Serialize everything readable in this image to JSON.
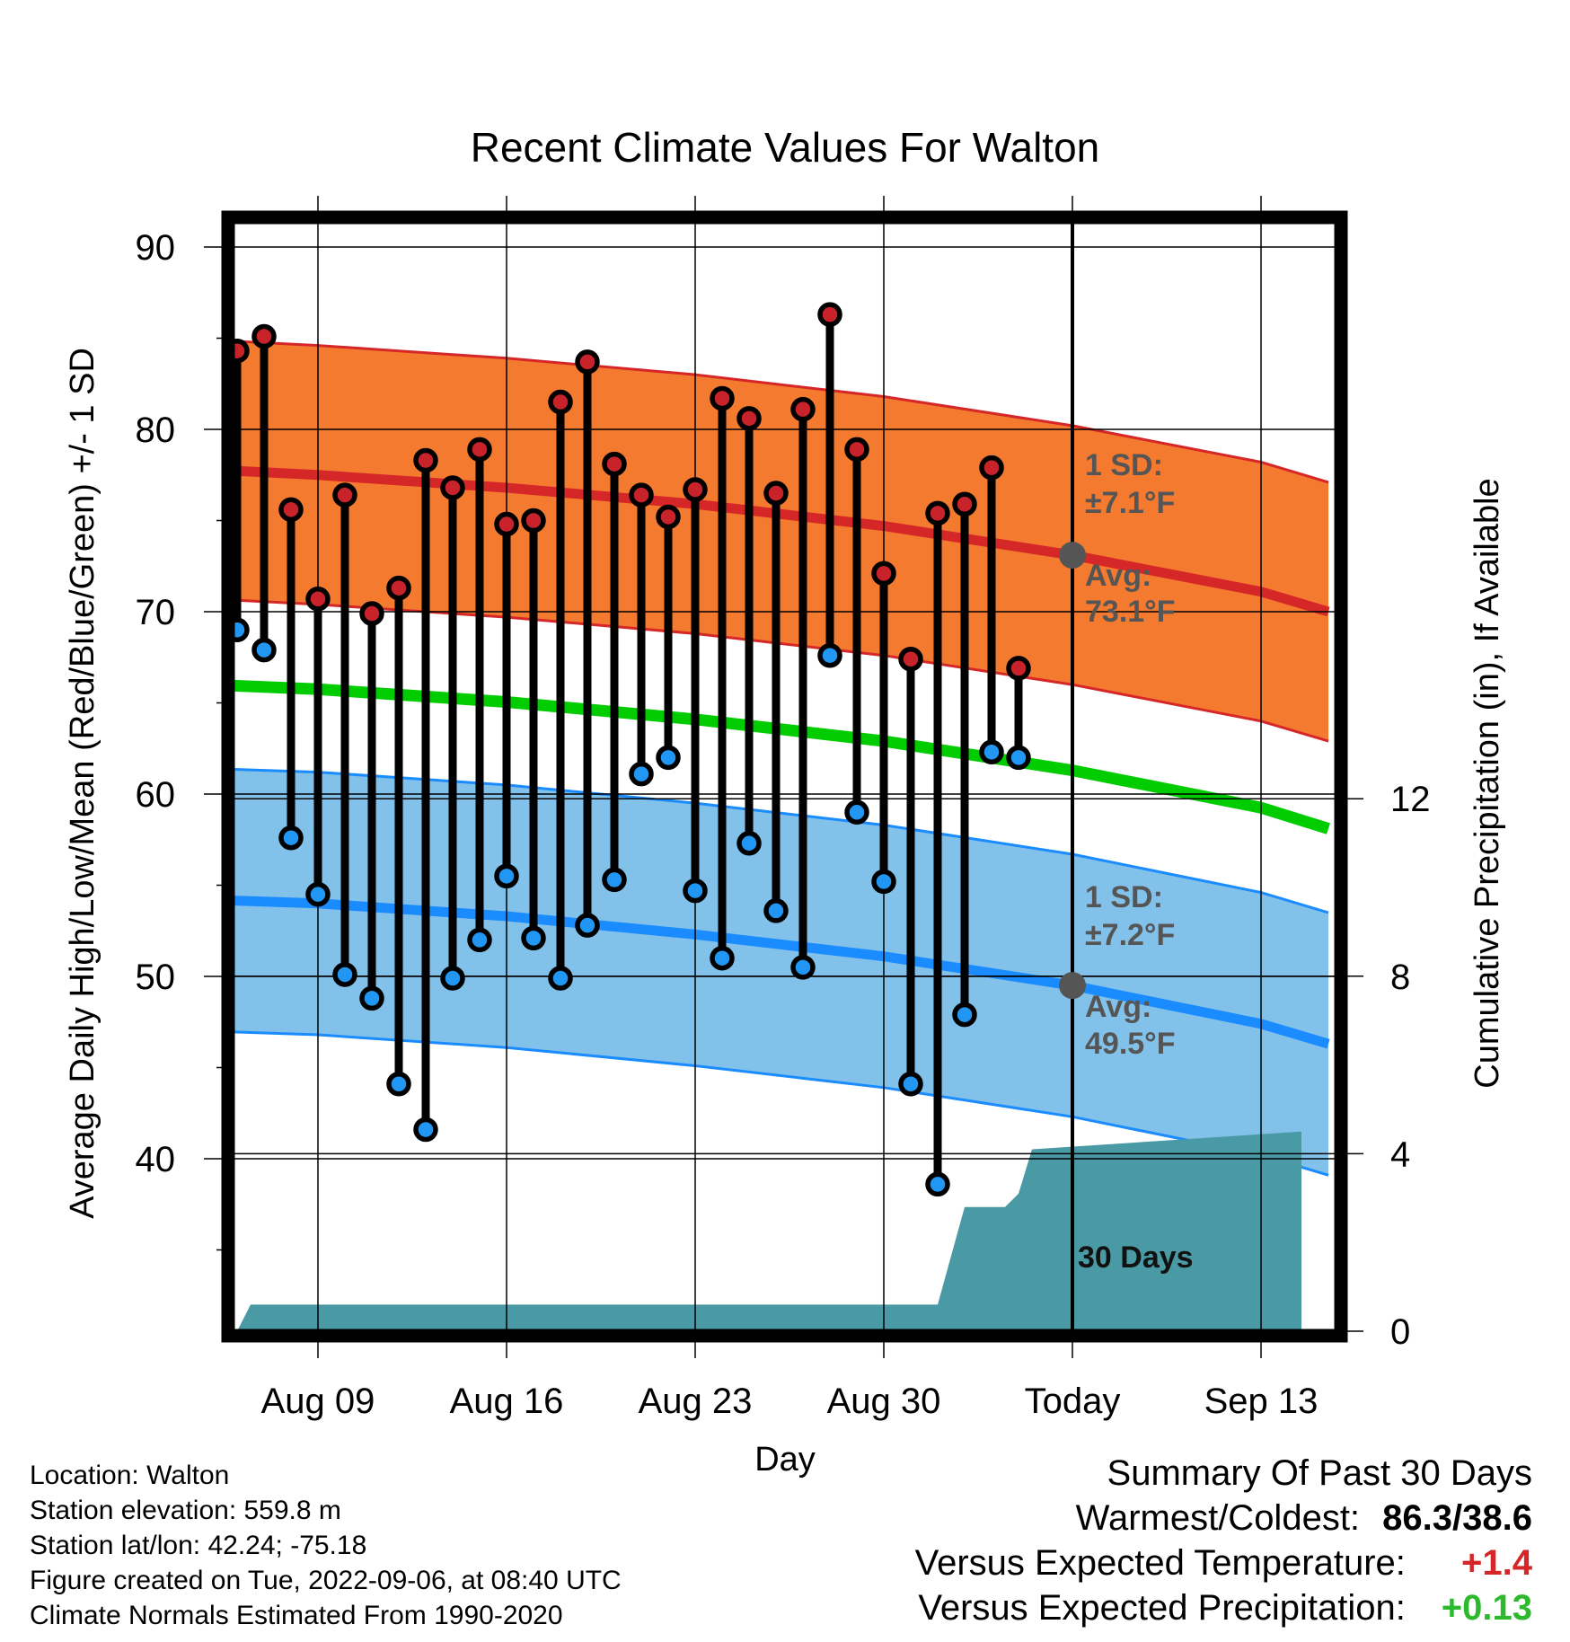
{
  "chart_data": {
    "type": "line",
    "title": "Recent Climate Values For Walton",
    "xlabel": "Day",
    "ylabel": "Average Daily High/Low/Mean (Red/Blue/Green) +/- 1 SD",
    "y2label": "Cumulative Precipitation (in), If Available",
    "ylim": [
      30,
      90
    ],
    "y2lim": [
      0,
      24
    ],
    "yticks": [
      "40",
      "50",
      "60",
      "70",
      "80",
      "90"
    ],
    "y2ticks": [
      "0",
      "4",
      "8",
      "12"
    ],
    "xlim": [
      -33.5,
      8.5
    ],
    "xticks": [
      {
        "label": "Aug 09",
        "day": -28
      },
      {
        "label": "Aug 16",
        "day": -21
      },
      {
        "label": "Aug 23",
        "day": -14
      },
      {
        "label": "Aug 30",
        "day": -7
      },
      {
        "label": "Today",
        "day": 0
      },
      {
        "label": "Sep 13",
        "day": 7
      }
    ],
    "today_marker": {
      "label": "30 Days"
    },
    "daily": {
      "days": [
        -31,
        -30,
        -29,
        -28,
        -27,
        -26,
        -25,
        -24,
        -23,
        -22,
        -21,
        -20,
        -19,
        -18,
        -17,
        -16,
        -15,
        -14,
        -13,
        -12,
        -11,
        -10,
        -9,
        -8,
        -7,
        -6,
        -5,
        -4,
        -3,
        -2,
        -1
      ],
      "highs": [
        84.3,
        85.1,
        75.6,
        70.7,
        76.4,
        69.9,
        71.3,
        78.3,
        76.8,
        78.9,
        74.8,
        75.0,
        81.5,
        83.7,
        78.1,
        76.4,
        75.2,
        76.7,
        81.7,
        80.6,
        76.5,
        81.1,
        86.3,
        78.9,
        72.1,
        67.4,
        75.4,
        75.9,
        77.9,
        66.9,
        null
      ],
      "lows": [
        69.0,
        67.9,
        57.6,
        54.5,
        50.1,
        48.8,
        44.1,
        41.6,
        49.9,
        52.0,
        55.5,
        52.1,
        49.9,
        52.8,
        55.3,
        61.1,
        62.0,
        54.7,
        51.0,
        57.3,
        53.6,
        50.5,
        67.6,
        59.0,
        55.2,
        44.1,
        38.6,
        47.9,
        62.3,
        62.0,
        null
      ]
    },
    "normals": {
      "days": [
        -32,
        -28,
        -21,
        -14,
        -7,
        0,
        7,
        9.5
      ],
      "high_avg": [
        77.8,
        77.5,
        76.8,
        75.9,
        74.7,
        73.1,
        71.1,
        70.0
      ],
      "low_avg": [
        54.2,
        54.0,
        53.3,
        52.3,
        51.1,
        49.5,
        47.4,
        46.3
      ],
      "mean_avg": [
        66.0,
        65.75,
        65.05,
        64.1,
        62.9,
        61.3,
        59.25,
        58.1
      ],
      "high_sd": 7.1,
      "low_sd": 7.2
    },
    "precip": {
      "days": [
        -31.5,
        -31,
        -30.5,
        -29,
        -28,
        -25,
        -21,
        -18,
        -15,
        -14,
        -13,
        -12.5,
        -10,
        -9,
        -8.5,
        -8,
        -6,
        -5,
        -4,
        -3.5,
        -3,
        -2.5,
        -2,
        -1.5,
        8.5
      ],
      "values": [
        0,
        0,
        0.6,
        0.6,
        0.6,
        0.6,
        0.6,
        0.6,
        0.6,
        0.6,
        0.6,
        0.6,
        0.6,
        0.6,
        0.6,
        0.6,
        0.6,
        0.6,
        2.8,
        2.8,
        2.8,
        2.8,
        3.1,
        4.1,
        4.5
      ]
    },
    "annotations": {
      "high_sd_label": "1 SD:",
      "high_sd_value": "±7.1°F",
      "high_avg_label": "Avg:",
      "high_avg_value": "73.1°F",
      "low_sd_label": "1 SD:",
      "low_sd_value": "±7.2°F",
      "low_avg_label": "Avg:",
      "low_avg_value": "49.5°F"
    },
    "colors": {
      "high_band": "#f47a30",
      "high_line": "#d62728",
      "low_band": "#82c1e9",
      "low_line": "#1a8cff",
      "mean_line": "#00cc00",
      "precip": "#4a9aa5",
      "high_dot": "#c8232a",
      "low_dot": "#2196f3",
      "annotation": "#555555"
    }
  },
  "info": {
    "location": "Location: Walton",
    "elevation": "Station elevation: 559.8 m",
    "latlon": "Station lat/lon: 42.24; -75.18",
    "created": "Figure created on Tue, 2022-09-06, at 08:40 UTC",
    "normals": "Climate Normals Estimated From 1990-2020"
  },
  "summary": {
    "title": "Summary Of Past 30 Days",
    "warm_cold_label": "Warmest/Coldest:",
    "warm_cold_value": "86.3/38.6",
    "temp_label": "Versus Expected Temperature:",
    "temp_value": "+1.4",
    "temp_color": "#d62728",
    "precip_label": "Versus Expected Precipitation:",
    "precip_value": "+0.13",
    "precip_color": "#2db92d"
  }
}
